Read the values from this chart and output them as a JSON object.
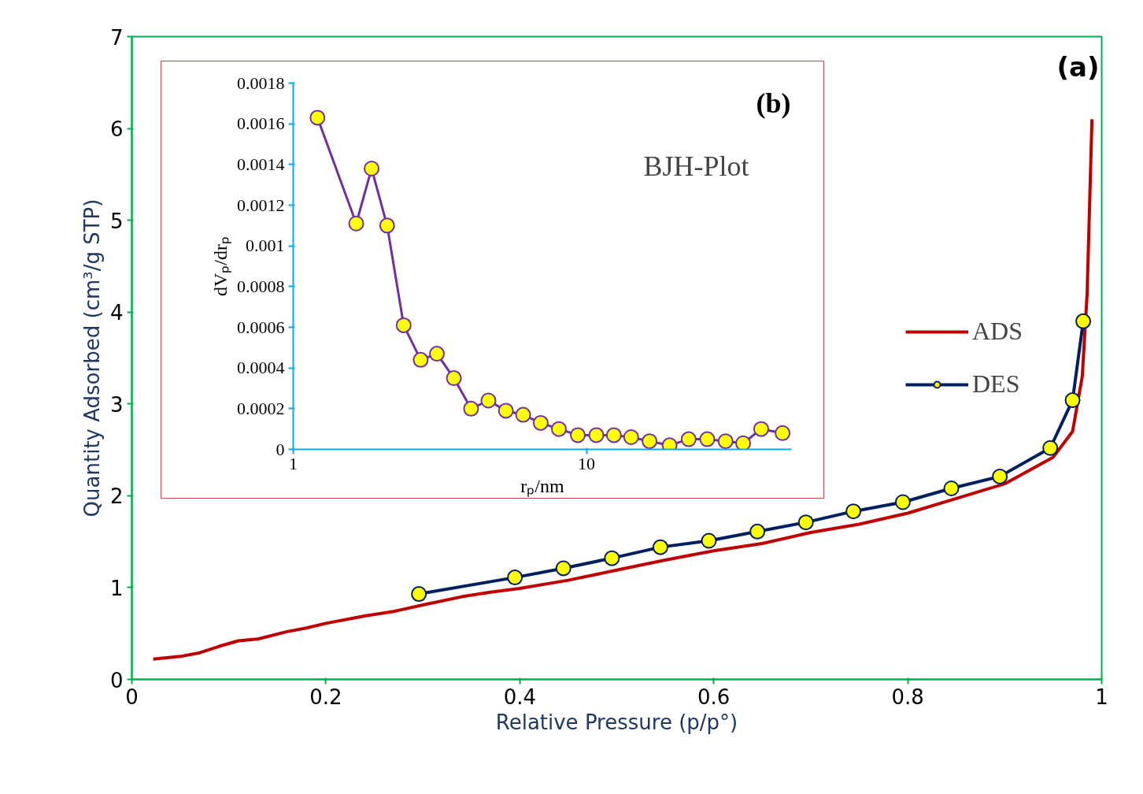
{
  "chart_data": [
    {
      "type": "line",
      "xlabel": "Relative Pressure (p/p°)",
      "ylabel": "Quantity Adsorbed (cm³/g STP)",
      "annotations": [
        "(a)"
      ],
      "xlim": [
        0,
        1
      ],
      "ylim": [
        0,
        7
      ],
      "xticks": [
        0,
        0.2,
        0.4,
        0.6,
        0.8,
        1
      ],
      "yticks": [
        0,
        1,
        2,
        3,
        4,
        5,
        6,
        7
      ],
      "grid": false,
      "legend": "right",
      "series": [
        {
          "name": "ADS",
          "color": "#c00000",
          "marker": "none",
          "x": [
            0.022,
            0.05,
            0.07,
            0.09,
            0.11,
            0.13,
            0.16,
            0.18,
            0.2,
            0.24,
            0.27,
            0.3,
            0.34,
            0.37,
            0.4,
            0.45,
            0.5,
            0.55,
            0.6,
            0.65,
            0.7,
            0.75,
            0.8,
            0.85,
            0.9,
            0.95,
            0.97,
            0.98,
            0.985,
            0.99
          ],
          "values": [
            0.22,
            0.25,
            0.29,
            0.36,
            0.42,
            0.44,
            0.52,
            0.56,
            0.61,
            0.69,
            0.74,
            0.81,
            0.9,
            0.95,
            0.99,
            1.08,
            1.19,
            1.3,
            1.4,
            1.48,
            1.6,
            1.69,
            1.81,
            1.97,
            2.13,
            2.42,
            2.7,
            3.3,
            4.2,
            6.1
          ]
        },
        {
          "name": "DES",
          "color": "#002060",
          "marker": "circle",
          "x": [
            0.296,
            0.395,
            0.445,
            0.495,
            0.545,
            0.595,
            0.645,
            0.695,
            0.744,
            0.795,
            0.845,
            0.895,
            0.947,
            0.97,
            0.981
          ],
          "values": [
            0.93,
            1.11,
            1.21,
            1.32,
            1.44,
            1.51,
            1.61,
            1.71,
            1.83,
            1.93,
            2.08,
            2.21,
            2.52,
            3.04,
            3.9
          ]
        }
      ]
    },
    {
      "type": "line",
      "title": "BJH-Plot",
      "xlabel": "rₚ/nm",
      "ylabel": "dVₚ/drₚ",
      "annotations": [
        "(b)"
      ],
      "log": "x",
      "xlim": [
        1,
        50
      ],
      "ylim": [
        0,
        0.0018
      ],
      "xticks": [
        1,
        10
      ],
      "yticks": [
        0,
        0.0002,
        0.0004,
        0.0006,
        0.0008,
        0.001,
        0.0012,
        0.0014,
        0.0016,
        0.0018
      ],
      "grid": false,
      "legend": false,
      "series": [
        {
          "color": "#7030a0",
          "marker": "circle",
          "x": [
            1.21,
            1.64,
            1.85,
            2.09,
            2.38,
            2.72,
            3.09,
            3.53,
            4.04,
            4.63,
            5.31,
            6.08,
            6.98,
            8.05,
            9.34,
            10.8,
            12.4,
            14.2,
            16.4,
            19.2,
            22.3,
            25.8,
            29.8,
            34.2,
            39.4,
            46.6
          ],
          "values": [
            0.00163,
            0.00111,
            0.00138,
            0.0011,
            0.00061,
            0.00044,
            0.00047,
            0.00035,
            0.0002,
            0.00024,
            0.00019,
            0.00017,
            0.00013,
            0.0001,
            7e-05,
            7e-05,
            7e-05,
            6e-05,
            4e-05,
            2e-05,
            5e-05,
            5e-05,
            4e-05,
            3e-05,
            0.0001,
            8e-05
          ]
        }
      ]
    }
  ]
}
